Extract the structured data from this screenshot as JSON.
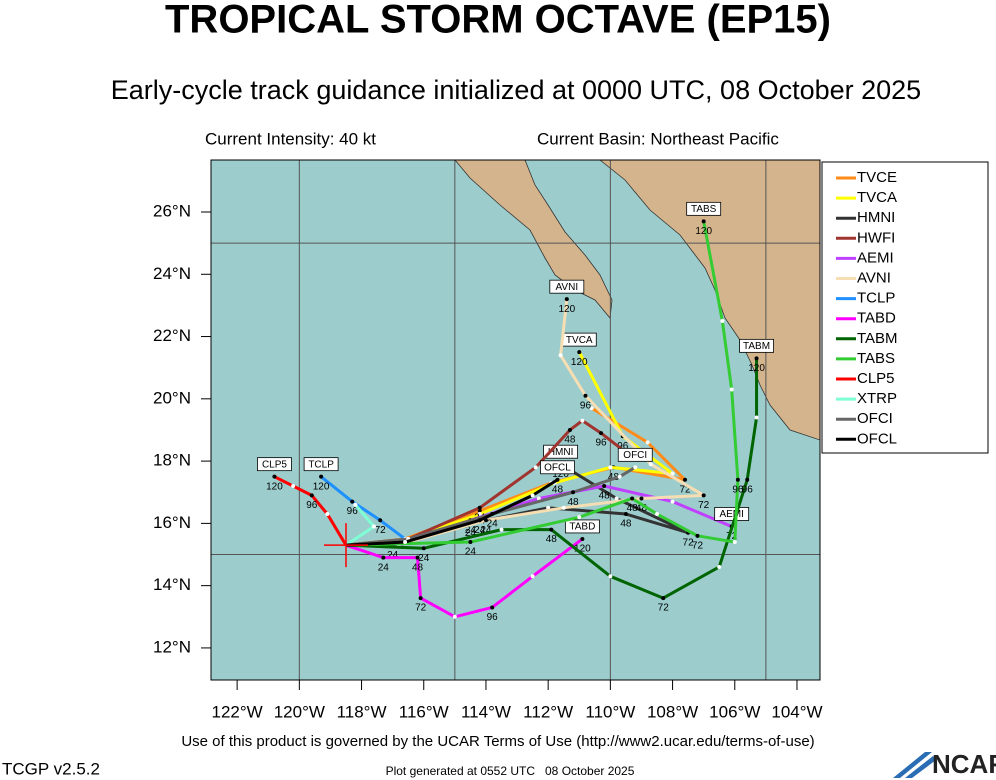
{
  "title": "TROPICAL STORM OCTAVE (EP15)",
  "subtitle": "Early-cycle track guidance initialized at 0000 UTC, 08 October 2025",
  "current_intensity": "Current Intensity: 40 kt",
  "current_basin": "Current Basin: Northeast Pacific",
  "map": {
    "xlim": [
      -122.84,
      -103.26
    ],
    "ylim": [
      10.97,
      27.67
    ],
    "xticks": [
      {
        "value": -122,
        "label": "122°W"
      },
      {
        "value": -120,
        "label": "120°W"
      },
      {
        "value": -118,
        "label": "118°W"
      },
      {
        "value": -116,
        "label": "116°W"
      },
      {
        "value": -114,
        "label": "114°W"
      },
      {
        "value": -112,
        "label": "112°W"
      },
      {
        "value": -110,
        "label": "110°W"
      },
      {
        "value": -108,
        "label": "108°W"
      },
      {
        "value": -106,
        "label": "106°W"
      },
      {
        "value": -104,
        "label": "104°W"
      }
    ],
    "yticks": [
      {
        "value": 12,
        "label": "12°N"
      },
      {
        "value": 14,
        "label": "14°N"
      },
      {
        "value": 16,
        "label": "16°N"
      },
      {
        "value": 18,
        "label": "18°N"
      },
      {
        "value": 20,
        "label": "20°N"
      },
      {
        "value": 22,
        "label": "22°N"
      },
      {
        "value": 24,
        "label": "24°N"
      },
      {
        "value": 26,
        "label": "26°N"
      }
    ],
    "grid_lons": [
      -120,
      -115,
      -110,
      -105
    ],
    "grid_lats": [
      15,
      25
    ],
    "ocean_color": "#9ccccc",
    "land_color": "#d4b48c",
    "current_position": {
      "lon": -118.5,
      "lat": 15.3,
      "color": "#ff0000"
    },
    "tracks": [
      {
        "name": "TVCE",
        "color": "#ff8c1a",
        "boxed": false,
        "lon": [
          -118.5,
          -116.6,
          -114.2,
          -111.9,
          -109.9,
          -107.6,
          -108.8,
          -110.6
        ],
        "lat": [
          15.3,
          15.5,
          16.4,
          17.3,
          17.8,
          17.4,
          18.6,
          19.7
        ],
        "hours": [
          null,
          null,
          "24",
          null,
          "48",
          "72",
          null,
          null
        ]
      },
      {
        "name": "TVCA",
        "color": "#ffff00",
        "boxed": true,
        "lon": [
          -118.5,
          -116.5,
          -114.2,
          -111.8,
          -110.0,
          -108.0,
          -109.6,
          -111.0
        ],
        "lat": [
          15.3,
          15.5,
          16.3,
          17.3,
          17.8,
          17.6,
          18.8,
          21.5
        ],
        "hours": [
          null,
          null,
          null,
          null,
          null,
          null,
          "96",
          "120"
        ]
      },
      {
        "name": "HMNI",
        "color": "#333333",
        "boxed": true,
        "lon": [
          -118.5,
          -116.6,
          -114.5,
          -112.0,
          -109.5,
          -107.5,
          -109.8,
          -111.6
        ],
        "lat": [
          15.3,
          15.4,
          16.0,
          16.5,
          16.3,
          15.7,
          16.8,
          17.9
        ],
        "hours": [
          null,
          null,
          "24",
          null,
          "48",
          "72",
          null,
          "120"
        ]
      },
      {
        "name": "HWFI",
        "color": "#a0342e",
        "boxed": false,
        "lon": [
          -118.5,
          -116.5,
          -114.2,
          -112.4,
          -111.3,
          -110.9,
          -110.3,
          -109.4
        ],
        "lat": [
          15.3,
          15.5,
          16.5,
          17.8,
          19.0,
          19.3,
          18.9,
          18.2
        ],
        "hours": [
          null,
          null,
          "24",
          null,
          "48",
          null,
          "96",
          null
        ]
      },
      {
        "name": "AEMI",
        "color": "#c040ff",
        "boxed": true,
        "lon": [
          -118.5,
          -116.8,
          -114.5,
          -112.3,
          -110.2,
          -108.0,
          -106.1
        ],
        "lat": [
          15.3,
          15.3,
          16.1,
          16.8,
          17.2,
          16.7,
          15.9
        ],
        "hours": [
          null,
          null,
          "24",
          null,
          "48",
          null,
          "72"
        ]
      },
      {
        "name": "AVNI",
        "color": "#f5deb3",
        "boxed": true,
        "lon": [
          -118.5,
          -116.5,
          -114.0,
          -111.5,
          -109.0,
          -107.0,
          -108.7,
          -110.8,
          -111.6,
          -111.4
        ],
        "lat": [
          15.3,
          15.4,
          16.1,
          16.5,
          16.8,
          16.9,
          17.9,
          20.1,
          21.4,
          23.2
        ],
        "hours": [
          null,
          null,
          "24",
          null,
          "48",
          "72",
          null,
          "96",
          null,
          "120"
        ]
      },
      {
        "name": "TCLP",
        "color": "#1e90ff",
        "boxed": true,
        "lon": [
          -118.5,
          -117.0,
          -116.6,
          -117.4,
          -118.3,
          -119.3
        ],
        "lat": [
          15.3,
          15.3,
          15.5,
          16.1,
          16.7,
          17.5
        ],
        "hours": [
          null,
          "24",
          null,
          "72",
          "96",
          "120"
        ]
      },
      {
        "name": "TABD",
        "color": "#ff00ff",
        "boxed": true,
        "lon": [
          -118.5,
          -117.3,
          -116.2,
          -116.1,
          -115.0,
          -113.8,
          -112.5,
          -110.9
        ],
        "lat": [
          15.3,
          14.9,
          14.9,
          13.6,
          13.0,
          13.3,
          14.3,
          15.5
        ],
        "hours": [
          null,
          "24",
          "48",
          "72",
          null,
          "96",
          null,
          "120"
        ]
      },
      {
        "name": "TABM",
        "color": "#006400",
        "boxed": true,
        "lon": [
          -118.5,
          -116.0,
          -113.5,
          -111.9,
          -110.0,
          -108.3,
          -106.5,
          -105.6,
          -105.3,
          -105.3
        ],
        "lat": [
          15.3,
          15.2,
          15.8,
          15.8,
          14.3,
          13.6,
          14.6,
          17.4,
          19.4,
          21.3
        ],
        "hours": [
          null,
          "24",
          null,
          "48",
          null,
          "72",
          null,
          "96",
          null,
          "120"
        ]
      },
      {
        "name": "TABS",
        "color": "#33cc33",
        "boxed": true,
        "lon": [
          -118.5,
          -114.5,
          -111.0,
          -109.3,
          -108.5,
          -107.2,
          -106.0,
          -105.9,
          -106.1,
          -106.4,
          -107.0
        ],
        "lat": [
          15.3,
          15.4,
          16.2,
          16.8,
          16.3,
          15.6,
          15.4,
          17.4,
          20.3,
          22.5,
          25.7
        ],
        "hours": [
          null,
          "24",
          null,
          "48",
          null,
          "72",
          null,
          "96",
          null,
          null,
          "120"
        ]
      },
      {
        "name": "CLP5",
        "color": "#ff0000",
        "boxed": true,
        "lon": [
          -118.5,
          -119.1,
          -119.6,
          -120.2,
          -120.8
        ],
        "lat": [
          15.3,
          16.3,
          16.9,
          17.2,
          17.5
        ],
        "hours": [
          null,
          null,
          "96",
          null,
          "120"
        ]
      },
      {
        "name": "XTRP",
        "color": "#7fffd4",
        "boxed": false,
        "lon": [
          -118.5,
          -117.6,
          -118.2
        ],
        "lat": [
          15.3,
          15.9,
          16.6
        ],
        "hours": [
          null,
          null,
          null
        ]
      },
      {
        "name": "OFCI",
        "color": "#666666",
        "boxed": true,
        "lon": [
          -118.5,
          -116.5,
          -113.8,
          -111.2,
          -109.7,
          -109.2
        ],
        "lat": [
          15.3,
          15.5,
          16.3,
          17.0,
          17.5,
          17.8
        ],
        "hours": [
          null,
          null,
          "24",
          "48",
          null,
          null
        ]
      },
      {
        "name": "OFCL",
        "color": "#000000",
        "boxed": true,
        "lon": [
          -118.5,
          -116.6,
          -114.2,
          -112.5,
          -111.7
        ],
        "lat": [
          15.3,
          15.4,
          16.1,
          16.9,
          17.4
        ],
        "hours": [
          null,
          null,
          "24",
          null,
          "48"
        ]
      }
    ]
  },
  "footer": {
    "terms": "Use of this product is governed by the UCAR Terms of Use (http://www2.ucar.edu/terms-of-use)",
    "version": "TCGP v2.5.2",
    "generated": "Plot generated at 0552 UTC   08 October 2025",
    "logo": "NCAR"
  }
}
